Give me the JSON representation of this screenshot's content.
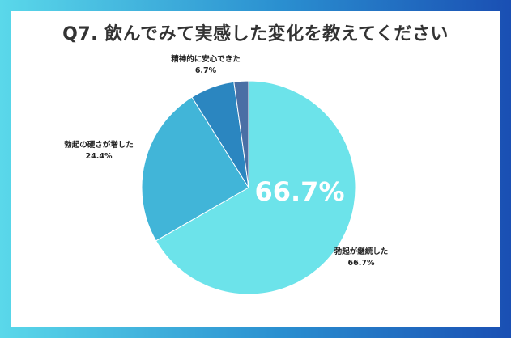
{
  "title": "Q7. 飲んでみて実感した変化を教えてください",
  "chart_data": {
    "type": "pie",
    "slices": [
      {
        "label": "勃起が継続した",
        "value": 66.7,
        "value_label": "66.7%",
        "color": "#6ce3ea"
      },
      {
        "label": "勃起の硬さが増した",
        "value": 24.4,
        "value_label": "24.4%",
        "color": "#41b5d8"
      },
      {
        "label": "精神的に安心できた",
        "value": 6.7,
        "value_label": "6.7%",
        "color": "#2b86c0"
      },
      {
        "label": "",
        "value": 2.2,
        "value_label": "",
        "color": "#4a6fa5"
      }
    ],
    "highlight_label": "66.7%",
    "legend": "none"
  }
}
